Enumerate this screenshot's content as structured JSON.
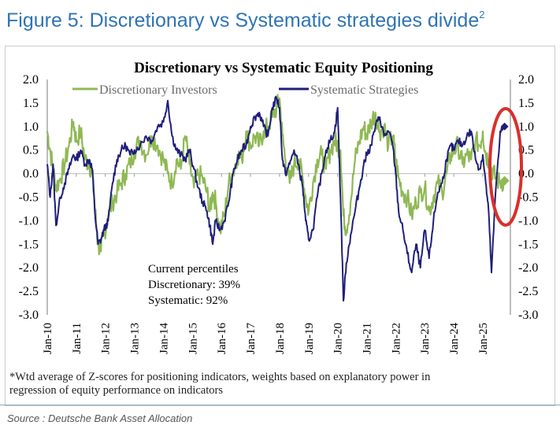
{
  "figure": {
    "title": "Figure 5: Discretionary vs Systematic strategies divide",
    "title_sup": "2",
    "source": "Source : Deutsche Bank Asset Allocation"
  },
  "chart_data": {
    "type": "line",
    "title": "Discretionary  vs Systematic Equity Positioning",
    "xlabel": "",
    "ylabel": "",
    "ylim": [
      -3.0,
      2.0
    ],
    "y_ticks": [
      "2.0",
      "1.5",
      "1.0",
      "0.5",
      "0.0",
      "-0.5",
      "-1.0",
      "-1.5",
      "-2.0",
      "-2.5",
      "-3.0"
    ],
    "x_tick_labels": [
      "Jan-10",
      "Jan-11",
      "Jan-12",
      "Jan-13",
      "Jan-14",
      "Jan-15",
      "Jan-16",
      "Jan-17",
      "Jan-18",
      "Jan-19",
      "Jan-20",
      "Jan-21",
      "Jan-22",
      "Jan-23",
      "Jan-24",
      "Jan-25"
    ],
    "x_range": [
      2010.0,
      2025.95
    ],
    "legend_position": "top-left",
    "series": [
      {
        "name": "Discretionary Investors",
        "color": "#8fb954",
        "x": [
          2010.0,
          2010.1,
          2010.2,
          2010.3,
          2010.45,
          2010.6,
          2010.75,
          2010.9,
          2011.0,
          2011.15,
          2011.3,
          2011.45,
          2011.55,
          2011.65,
          2011.75,
          2011.85,
          2011.95,
          2012.1,
          2012.25,
          2012.4,
          2012.55,
          2012.7,
          2012.85,
          2013.0,
          2013.2,
          2013.4,
          2013.6,
          2013.8,
          2014.0,
          2014.15,
          2014.3,
          2014.45,
          2014.6,
          2014.75,
          2014.9,
          2015.05,
          2015.2,
          2015.35,
          2015.5,
          2015.6,
          2015.7,
          2015.8,
          2015.95,
          2016.1,
          2016.25,
          2016.4,
          2016.55,
          2016.7,
          2016.85,
          2017.0,
          2017.15,
          2017.3,
          2017.45,
          2017.6,
          2017.75,
          2017.9,
          2018.0,
          2018.1,
          2018.2,
          2018.35,
          2018.5,
          2018.65,
          2018.8,
          2018.9,
          2019.0,
          2019.15,
          2019.3,
          2019.45,
          2019.6,
          2019.75,
          2019.9,
          2020.0,
          2020.1,
          2020.2,
          2020.3,
          2020.45,
          2020.6,
          2020.75,
          2020.9,
          2021.0,
          2021.15,
          2021.3,
          2021.45,
          2021.6,
          2021.75,
          2021.9,
          2022.0,
          2022.1,
          2022.25,
          2022.4,
          2022.55,
          2022.7,
          2022.85,
          2023.0,
          2023.15,
          2023.3,
          2023.45,
          2023.6,
          2023.75,
          2023.9,
          2024.0,
          2024.15,
          2024.3,
          2024.45,
          2024.6,
          2024.75,
          2024.9,
          2025.0,
          2025.1,
          2025.2,
          2025.3,
          2025.45,
          2025.6,
          2025.75
        ],
        "values": [
          0.9,
          0.5,
          0.1,
          -0.3,
          -0.1,
          0.2,
          0.6,
          1.1,
          0.7,
          0.9,
          0.3,
          0.2,
          0.0,
          -0.8,
          -1.5,
          -1.65,
          -1.3,
          -0.9,
          -0.6,
          -0.4,
          -0.2,
          0.0,
          0.2,
          0.5,
          0.7,
          0.4,
          0.8,
          0.6,
          0.3,
          0.0,
          -0.2,
          0.3,
          0.1,
          0.8,
          0.2,
          -0.3,
          0.0,
          -0.1,
          -0.4,
          -0.8,
          -0.4,
          -0.6,
          -1.2,
          -0.9,
          -0.2,
          0.0,
          0.4,
          0.3,
          0.9,
          0.6,
          0.8,
          0.6,
          0.9,
          1.0,
          1.2,
          1.4,
          1.6,
          0.8,
          0.3,
          -0.2,
          0.2,
          0.3,
          -0.1,
          -0.5,
          -0.8,
          -0.2,
          0.3,
          0.4,
          0.1,
          0.5,
          0.7,
          0.6,
          0.5,
          -0.9,
          -1.2,
          -0.6,
          0.3,
          0.7,
          1.0,
          0.8,
          1.1,
          1.3,
          0.9,
          1.0,
          0.6,
          0.8,
          0.3,
          -0.1,
          -0.4,
          -0.5,
          -0.9,
          -0.6,
          -0.4,
          -0.3,
          -0.8,
          -0.5,
          -0.2,
          -0.4,
          0.0,
          0.4,
          0.5,
          0.6,
          0.2,
          0.4,
          0.3,
          0.7,
          0.6,
          0.9,
          0.4,
          0.3,
          0.1,
          -0.1,
          -0.2,
          -0.15
        ]
      },
      {
        "name": "Systematic Strategies",
        "color": "#1f1f7a",
        "x": [
          2010.0,
          2010.1,
          2010.2,
          2010.3,
          2010.45,
          2010.6,
          2010.75,
          2010.9,
          2011.0,
          2011.15,
          2011.3,
          2011.45,
          2011.55,
          2011.65,
          2011.75,
          2011.85,
          2011.95,
          2012.1,
          2012.25,
          2012.4,
          2012.55,
          2012.7,
          2012.85,
          2013.0,
          2013.2,
          2013.4,
          2013.6,
          2013.8,
          2014.0,
          2014.15,
          2014.3,
          2014.45,
          2014.6,
          2014.75,
          2014.9,
          2015.05,
          2015.2,
          2015.35,
          2015.5,
          2015.6,
          2015.7,
          2015.8,
          2015.95,
          2016.1,
          2016.25,
          2016.4,
          2016.55,
          2016.7,
          2016.85,
          2017.0,
          2017.15,
          2017.3,
          2017.45,
          2017.6,
          2017.75,
          2017.9,
          2018.0,
          2018.1,
          2018.2,
          2018.35,
          2018.5,
          2018.65,
          2018.8,
          2018.9,
          2019.0,
          2019.15,
          2019.3,
          2019.45,
          2019.6,
          2019.75,
          2019.9,
          2020.0,
          2020.1,
          2020.2,
          2020.3,
          2020.45,
          2020.6,
          2020.75,
          2020.9,
          2021.0,
          2021.15,
          2021.3,
          2021.45,
          2021.6,
          2021.75,
          2021.9,
          2022.0,
          2022.1,
          2022.25,
          2022.4,
          2022.55,
          2022.7,
          2022.85,
          2023.0,
          2023.15,
          2023.3,
          2023.45,
          2023.6,
          2023.75,
          2023.9,
          2024.0,
          2024.15,
          2024.3,
          2024.45,
          2024.6,
          2024.75,
          2024.9,
          2025.0,
          2025.1,
          2025.2,
          2025.3,
          2025.45,
          2025.6,
          2025.75
        ],
        "values": [
          0.2,
          -0.5,
          0.2,
          -1.1,
          -0.5,
          -0.2,
          0.1,
          0.4,
          0.3,
          0.5,
          0.2,
          0.3,
          0.1,
          -0.9,
          -1.5,
          -1.4,
          -1.2,
          -1.0,
          -0.2,
          0.3,
          0.5,
          0.6,
          0.4,
          0.5,
          0.6,
          0.8,
          0.7,
          1.0,
          1.1,
          1.55,
          0.8,
          0.5,
          0.4,
          0.3,
          0.5,
          0.1,
          -0.3,
          -0.6,
          -0.8,
          -1.1,
          -1.5,
          -1.0,
          -1.2,
          -1.0,
          -0.6,
          0.0,
          0.3,
          0.5,
          0.6,
          1.0,
          1.2,
          1.3,
          1.0,
          0.8,
          1.4,
          1.6,
          1.4,
          0.3,
          0.0,
          0.2,
          0.5,
          0.2,
          -0.3,
          -1.0,
          -1.4,
          -1.2,
          -0.5,
          0.0,
          0.5,
          0.7,
          0.9,
          1.4,
          -0.5,
          -2.7,
          -1.9,
          -1.3,
          -0.8,
          -0.3,
          0.2,
          0.4,
          0.6,
          1.0,
          1.2,
          0.8,
          0.9,
          0.6,
          0.0,
          -0.8,
          -1.2,
          -1.7,
          -2.1,
          -1.5,
          -2.0,
          -1.2,
          -1.8,
          -1.0,
          -0.4,
          -0.2,
          0.3,
          0.6,
          0.5,
          0.7,
          0.6,
          0.8,
          0.9,
          0.3,
          0.1,
          0.4,
          -0.2,
          -0.8,
          -2.1,
          -0.3,
          0.9,
          1.0
        ]
      }
    ],
    "annotation": {
      "heading": "Current percentiles",
      "discretionary": "Discretionary: 39%",
      "systematic": "Systematic: 92%"
    },
    "highlight": "red-ellipse-around-latest-values",
    "footnote_line1": "*Wtd average of Z-scores for positioning indicators, weights based on explanatory power in",
    "footnote_line2": "regression of equity performance on indicators",
    "grid": false
  }
}
